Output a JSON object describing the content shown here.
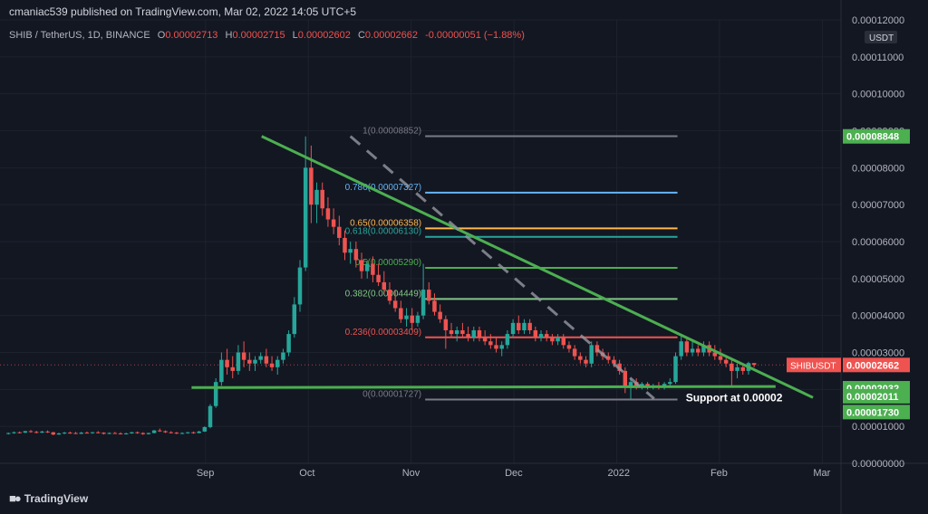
{
  "header": {
    "publisher": "cmaniac539 published on TradingView.com, Mar 02, 2022 14:05 UTC+5"
  },
  "legend": {
    "symbol": "SHIB / TetherUS, 1D, BINANCE",
    "open_label": "O",
    "open": "0.00002713",
    "high_label": "H",
    "high": "0.00002715",
    "low_label": "L",
    "low": "0.00002602",
    "close_label": "C",
    "close": "0.00002662",
    "change": "-0.00000051 (−1.88%)"
  },
  "footer": {
    "brand": "TradingView",
    "logo_icon": "tradingview-logo-icon"
  },
  "colors": {
    "background": "#131722",
    "up": "#26a69a",
    "down": "#ef5350",
    "trendline": "#4caf50",
    "grid": "#1e222d"
  },
  "chart_data": {
    "type": "candlestick",
    "symbol": "SHIBUSDT",
    "y_axis": {
      "unit": "USDT",
      "ylim": [
        0.0,
        0.00012
      ],
      "ticks": [
        "0.00000000",
        "0.00001000",
        "0.00002000",
        "0.00003000",
        "0.00004000",
        "0.00005000",
        "0.00006000",
        "0.00007000",
        "0.00008000",
        "0.00009000",
        "0.00010000",
        "0.00011000",
        "0.00012000"
      ]
    },
    "x_axis": {
      "labels": [
        "Sep",
        "Oct",
        "Nov",
        "Dec",
        "2022",
        "Feb",
        "Mar"
      ],
      "label_positions": [
        0.22,
        0.33,
        0.44,
        0.55,
        0.66,
        0.77,
        0.88
      ]
    },
    "grid": true,
    "price_tags": [
      {
        "label": "SHIBUSDT",
        "value": "0.00002662",
        "color": "#ef5350"
      },
      {
        "label": "",
        "value": "0.00008848",
        "color": "#4caf50"
      },
      {
        "label": "",
        "value": "0.00002032",
        "color": "#4caf50"
      },
      {
        "label": "",
        "value": "0.00002011",
        "color": "#4caf50"
      },
      {
        "label": "",
        "value": "0.00001730",
        "color": "#4caf50"
      }
    ],
    "fib_levels": [
      {
        "label": "1(0.00008852)",
        "value": 8.852e-05,
        "color": "#787b86"
      },
      {
        "label": "0.786(0.00007327)",
        "value": 7.327e-05,
        "color": "#64b5f6"
      },
      {
        "label": "0.65(0.00006358)",
        "value": 6.358e-05,
        "color": "#ffb74d"
      },
      {
        "label": "0.618(0.00006130)",
        "value": 6.13e-05,
        "color": "#26a69a"
      },
      {
        "label": "0.5(0.00005290)",
        "value": 5.29e-05,
        "color": "#4caf50"
      },
      {
        "label": "0.382(0.00004449)",
        "value": 4.449e-05,
        "color": "#81c784"
      },
      {
        "label": "0.236(0.00003409)",
        "value": 3.409e-05,
        "color": "#ef5350"
      },
      {
        "label": "0(0.00001727)",
        "value": 1.727e-05,
        "color": "#787b86"
      }
    ],
    "annotation": "Support at 0.00002",
    "trendlines": [
      {
        "name": "resistance",
        "from": [
          0.28,
          8.85e-05
        ],
        "to": [
          0.87,
          1.78e-05
        ]
      },
      {
        "name": "support",
        "from": [
          0.205,
          2.05e-05
        ],
        "to": [
          0.83,
          2.08e-05
        ]
      },
      {
        "name": "fib-diagonal",
        "from": [
          0.375,
          8.85e-05
        ],
        "to": [
          0.7,
          1.75e-05
        ]
      }
    ],
    "candles": [
      [
        0.009,
        8e-06,
        8.3e-06,
        7.8e-06,
        8.2e-06
      ],
      [
        0.015,
        8.2e-06,
        8.6e-06,
        8e-06,
        8.4e-06
      ],
      [
        0.021,
        8.4e-06,
        8.6e-06,
        8.1e-06,
        8.3e-06
      ],
      [
        0.027,
        8.3e-06,
        8.8e-06,
        8.2e-06,
        8.7e-06
      ],
      [
        0.033,
        8.7e-06,
        9e-06,
        8.3e-06,
        8.5e-06
      ],
      [
        0.039,
        8.5e-06,
        8.8e-06,
        8.1e-06,
        8.3e-06
      ],
      [
        0.045,
        8.3e-06,
        8.8e-06,
        8.2e-06,
        8.6e-06
      ],
      [
        0.051,
        8.6e-06,
        8.9e-06,
        8.2e-06,
        8.4e-06
      ],
      [
        0.057,
        8.4e-06,
        8.5e-06,
        7.6e-06,
        7.8e-06
      ],
      [
        0.063,
        7.8e-06,
        8.3e-06,
        7.7e-06,
        8.1e-06
      ],
      [
        0.069,
        8.1e-06,
        8.5e-06,
        7.9e-06,
        8.3e-06
      ],
      [
        0.075,
        8.3e-06,
        8.6e-06,
        8e-06,
        8.2e-06
      ],
      [
        0.081,
        8.2e-06,
        8.5e-06,
        7.9e-06,
        8e-06
      ],
      [
        0.087,
        8e-06,
        8.5e-06,
        7.9e-06,
        8.3e-06
      ],
      [
        0.093,
        8.3e-06,
        8.6e-06,
        8.1e-06,
        8.2e-06
      ],
      [
        0.099,
        8.2e-06,
        8.5e-06,
        8e-06,
        8.4e-06
      ],
      [
        0.105,
        8.4e-06,
        8.7e-06,
        8.1e-06,
        8.3e-06
      ],
      [
        0.111,
        8.3e-06,
        8.4e-06,
        7.8e-06,
        8e-06
      ],
      [
        0.117,
        8e-06,
        8.4e-06,
        7.9e-06,
        8.2e-06
      ],
      [
        0.123,
        8.2e-06,
        8.5e-06,
        8e-06,
        8.1e-06
      ],
      [
        0.129,
        8.1e-06,
        8.4e-06,
        7.8e-06,
        7.9e-06
      ],
      [
        0.135,
        7.9e-06,
        8.3e-06,
        7.8e-06,
        8.1e-06
      ],
      [
        0.141,
        8.1e-06,
        8.5e-06,
        8e-06,
        8.4e-06
      ],
      [
        0.147,
        8.4e-06,
        8.6e-06,
        8e-06,
        8.2e-06
      ],
      [
        0.153,
        8.2e-06,
        8.4e-06,
        7.7e-06,
        7.9e-06
      ],
      [
        0.159,
        7.9e-06,
        8.3e-06,
        7.8e-06,
        8.2e-06
      ],
      [
        0.165,
        8.2e-06,
        9e-06,
        8.1e-06,
        8.9e-06
      ],
      [
        0.171,
        8.9e-06,
        9.4e-06,
        8.5e-06,
        8.7e-06
      ],
      [
        0.177,
        8.7e-06,
        8.9e-06,
        8.2e-06,
        8.4e-06
      ],
      [
        0.183,
        8.4e-06,
        8.7e-06,
        8.1e-06,
        8.3e-06
      ],
      [
        0.189,
        8.3e-06,
        8.5e-06,
        7.9e-06,
        8.1e-06
      ],
      [
        0.195,
        8.1e-06,
        8.4e-06,
        7.9e-06,
        8.2e-06
      ],
      [
        0.201,
        8.2e-06,
        8.5e-06,
        8e-06,
        8.4e-06
      ],
      [
        0.207,
        8.4e-06,
        8.6e-06,
        8e-06,
        8.2e-06
      ],
      [
        0.213,
        8.2e-06,
        8.8e-06,
        8.1e-06,
        8.6e-06
      ],
      [
        0.219,
        8.6e-06,
        1e-05,
        8.5e-06,
        9.8e-06
      ],
      [
        0.225,
        9.8e-06,
        1.6e-05,
        9.5e-06,
        1.55e-05
      ],
      [
        0.231,
        1.55e-05,
        2.3e-05,
        1.5e-05,
        2.2e-05
      ],
      [
        0.237,
        2.2e-05,
        3e-05,
        2.1e-05,
        2.8e-05
      ],
      [
        0.243,
        2.8e-05,
        3.1e-05,
        2.4e-05,
        2.6e-05
      ],
      [
        0.249,
        2.6e-05,
        2.9e-05,
        2.3e-05,
        2.5e-05
      ],
      [
        0.255,
        2.5e-05,
        3.2e-05,
        2.4e-05,
        3e-05
      ],
      [
        0.261,
        3e-05,
        3.3e-05,
        2.6e-05,
        2.8e-05
      ],
      [
        0.267,
        2.8e-05,
        3e-05,
        2.5e-05,
        2.7e-05
      ],
      [
        0.273,
        2.7e-05,
        2.9e-05,
        2.5e-05,
        2.8e-05
      ],
      [
        0.279,
        2.8e-05,
        3e-05,
        2.7e-05,
        2.9e-05
      ],
      [
        0.285,
        2.9e-05,
        3.1e-05,
        2.6e-05,
        2.7e-05
      ],
      [
        0.291,
        2.7e-05,
        2.9e-05,
        2.5e-05,
        2.6e-05
      ],
      [
        0.297,
        2.6e-05,
        2.9e-05,
        2.4e-05,
        2.8e-05
      ],
      [
        0.303,
        2.8e-05,
        3.1e-05,
        2.7e-05,
        3e-05
      ],
      [
        0.309,
        3e-05,
        3.6e-05,
        2.9e-05,
        3.5e-05
      ],
      [
        0.315,
        3.5e-05,
        4.5e-05,
        3.4e-05,
        4.3e-05
      ],
      [
        0.321,
        4.3e-05,
        5.5e-05,
        4.1e-05,
        5.3e-05
      ],
      [
        0.327,
        5.3e-05,
        8.848e-05,
        5.2e-05,
        8e-05
      ],
      [
        0.333,
        8e-05,
        8.6e-05,
        6.5e-05,
        7e-05
      ],
      [
        0.339,
        7e-05,
        7.6e-05,
        6.5e-05,
        7.4e-05
      ],
      [
        0.345,
        7.4e-05,
        7.6e-05,
        6.7e-05,
        6.9e-05
      ],
      [
        0.351,
        6.9e-05,
        7.2e-05,
        6.4e-05,
        6.6e-05
      ],
      [
        0.357,
        6.6e-05,
        6.9e-05,
        6.2e-05,
        6.4e-05
      ],
      [
        0.363,
        6.4e-05,
        6.7e-05,
        5.9e-05,
        6.1e-05
      ],
      [
        0.369,
        6.1e-05,
        6.3e-05,
        5.5e-05,
        5.7e-05
      ],
      [
        0.375,
        5.7e-05,
        6e-05,
        5.4e-05,
        5.8e-05
      ],
      [
        0.381,
        5.8e-05,
        6e-05,
        5.3e-05,
        5.5e-05
      ],
      [
        0.387,
        5.5e-05,
        5.7e-05,
        5e-05,
        5.2e-05
      ],
      [
        0.393,
        5.2e-05,
        5.5e-05,
        5e-05,
        5.4e-05
      ],
      [
        0.399,
        5.4e-05,
        5.6e-05,
        4.9e-05,
        5.1e-05
      ],
      [
        0.405,
        5.1e-05,
        5.4e-05,
        4.8e-05,
        4.9e-05
      ],
      [
        0.411,
        4.9e-05,
        5.2e-05,
        4.6e-05,
        4.7e-05
      ],
      [
        0.417,
        4.7e-05,
        4.9e-05,
        4.3e-05,
        4.4e-05
      ],
      [
        0.423,
        4.4e-05,
        4.7e-05,
        4.1e-05,
        4.2e-05
      ],
      [
        0.429,
        4.2e-05,
        4.4e-05,
        3.8e-05,
        3.9e-05
      ],
      [
        0.435,
        3.9e-05,
        4.2e-05,
        3.7e-05,
        4e-05
      ],
      [
        0.441,
        4e-05,
        4.2e-05,
        3.6e-05,
        3.8e-05
      ],
      [
        0.447,
        3.8e-05,
        4.1e-05,
        3.7e-05,
        4e-05
      ],
      [
        0.453,
        4e-05,
        5.4e-05,
        3.9e-05,
        4.7e-05
      ],
      [
        0.459,
        4.7e-05,
        4.9e-05,
        4.3e-05,
        4.4e-05
      ],
      [
        0.465,
        4.4e-05,
        4.6e-05,
        4e-05,
        4.1e-05
      ],
      [
        0.471,
        4.1e-05,
        4.3e-05,
        3.8e-05,
        3.9e-05
      ],
      [
        0.477,
        3.9e-05,
        4e-05,
        3.1e-05,
        3.6e-05
      ],
      [
        0.483,
        3.6e-05,
        3.8e-05,
        3.4e-05,
        3.5e-05
      ],
      [
        0.489,
        3.5e-05,
        3.7e-05,
        3.3e-05,
        3.6e-05
      ],
      [
        0.495,
        3.6e-05,
        3.8e-05,
        3.4e-05,
        3.5e-05
      ],
      [
        0.501,
        3.5e-05,
        3.7e-05,
        3.3e-05,
        3.4e-05
      ],
      [
        0.507,
        3.4e-05,
        3.7e-05,
        3.3e-05,
        3.6e-05
      ],
      [
        0.513,
        3.6e-05,
        3.7e-05,
        3.3e-05,
        3.4e-05
      ],
      [
        0.519,
        3.4e-05,
        3.6e-05,
        3.2e-05,
        3.3e-05
      ],
      [
        0.525,
        3.3e-05,
        3.5e-05,
        3.1e-05,
        3.2e-05
      ],
      [
        0.531,
        3.2e-05,
        3.4e-05,
        3e-05,
        3.1e-05
      ],
      [
        0.537,
        3.1e-05,
        3.3e-05,
        2.9e-05,
        3.2e-05
      ],
      [
        0.543,
        3.2e-05,
        3.6e-05,
        3.1e-05,
        3.5e-05
      ],
      [
        0.549,
        3.5e-05,
        3.9e-05,
        3.4e-05,
        3.8e-05
      ],
      [
        0.555,
        3.8e-05,
        4e-05,
        3.5e-05,
        3.6e-05
      ],
      [
        0.561,
        3.6e-05,
        3.9e-05,
        3.5e-05,
        3.8e-05
      ],
      [
        0.567,
        3.8e-05,
        3.9e-05,
        3.5e-05,
        3.6e-05
      ],
      [
        0.573,
        3.6e-05,
        3.7e-05,
        3.3e-05,
        3.4e-05
      ],
      [
        0.579,
        3.4e-05,
        3.6e-05,
        3.3e-05,
        3.5e-05
      ],
      [
        0.585,
        3.5e-05,
        3.6e-05,
        3.3e-05,
        3.4e-05
      ],
      [
        0.591,
        3.4e-05,
        3.5e-05,
        3.2e-05,
        3.3e-05
      ],
      [
        0.597,
        3.3e-05,
        3.5e-05,
        3.2e-05,
        3.4e-05
      ],
      [
        0.603,
        3.4e-05,
        3.5e-05,
        3.1e-05,
        3.2e-05
      ],
      [
        0.609,
        3.2e-05,
        3.3e-05,
        3e-05,
        3.1e-05
      ],
      [
        0.615,
        3.1e-05,
        3.2e-05,
        2.8e-05,
        2.9e-05
      ],
      [
        0.621,
        2.9e-05,
        3e-05,
        2.7e-05,
        2.8e-05
      ],
      [
        0.627,
        2.8e-05,
        2.9e-05,
        2.6e-05,
        2.7e-05
      ],
      [
        0.633,
        2.7e-05,
        3.3e-05,
        2.6e-05,
        3.2e-05
      ],
      [
        0.639,
        3.2e-05,
        3.3e-05,
        2.9e-05,
        3e-05
      ],
      [
        0.645,
        3e-05,
        3.1e-05,
        2.8e-05,
        2.9e-05
      ],
      [
        0.651,
        2.9e-05,
        3e-05,
        2.7e-05,
        2.8e-05
      ],
      [
        0.657,
        2.8e-05,
        2.9e-05,
        2.6e-05,
        2.7e-05
      ],
      [
        0.663,
        2.7e-05,
        2.8e-05,
        2.4e-05,
        2.5e-05
      ],
      [
        0.669,
        2.5e-05,
        2.6e-05,
        1.9e-05,
        2.1e-05
      ],
      [
        0.675,
        2.1e-05,
        2.3e-05,
        1.75e-05,
        2.2e-05
      ],
      [
        0.681,
        2.2e-05,
        2.3e-05,
        2e-05,
        2.1e-05
      ],
      [
        0.687,
        2.1e-05,
        2.2e-05,
        2e-05,
        2.15e-05
      ],
      [
        0.693,
        2.15e-05,
        2.2e-05,
        2e-05,
        2.05e-05
      ],
      [
        0.699,
        2.05e-05,
        2.15e-05,
        2e-05,
        2.1e-05
      ],
      [
        0.705,
        2.1e-05,
        2.2e-05,
        2e-05,
        2.05e-05
      ],
      [
        0.711,
        2.05e-05,
        2.2e-05,
        2e-05,
        2.15e-05
      ],
      [
        0.717,
        2.15e-05,
        2.3e-05,
        2.05e-05,
        2.2e-05
      ],
      [
        0.723,
        2.2e-05,
        3e-05,
        2.15e-05,
        2.9e-05
      ],
      [
        0.729,
        2.9e-05,
        3.5e-05,
        2.8e-05,
        3.3e-05
      ],
      [
        0.735,
        3.3e-05,
        3.4e-05,
        2.9e-05,
        3e-05
      ],
      [
        0.741,
        3e-05,
        3.3e-05,
        2.9e-05,
        3.1e-05
      ],
      [
        0.747,
        3.1e-05,
        3.2e-05,
        2.9e-05,
        3e-05
      ],
      [
        0.753,
        3e-05,
        3.3e-05,
        2.9e-05,
        3.2e-05
      ],
      [
        0.759,
        3.2e-05,
        3.3e-05,
        2.9e-05,
        3e-05
      ],
      [
        0.765,
        3e-05,
        3.2e-05,
        2.8e-05,
        2.9e-05
      ],
      [
        0.771,
        2.9e-05,
        3.1e-05,
        2.7e-05,
        2.8e-05
      ],
      [
        0.777,
        2.8e-05,
        2.9e-05,
        2.6e-05,
        2.7e-05
      ],
      [
        0.783,
        2.7e-05,
        2.8e-05,
        2.1e-05,
        2.5e-05
      ],
      [
        0.789,
        2.5e-05,
        2.7e-05,
        2.3e-05,
        2.6e-05
      ],
      [
        0.795,
        2.6e-05,
        2.7e-05,
        2.4e-05,
        2.5e-05
      ],
      [
        0.801,
        2.5e-05,
        2.75e-05,
        2.4e-05,
        2.713e-05
      ],
      [
        0.807,
        2.713e-05,
        2.715e-05,
        2.602e-05,
        2.662e-05
      ]
    ]
  }
}
